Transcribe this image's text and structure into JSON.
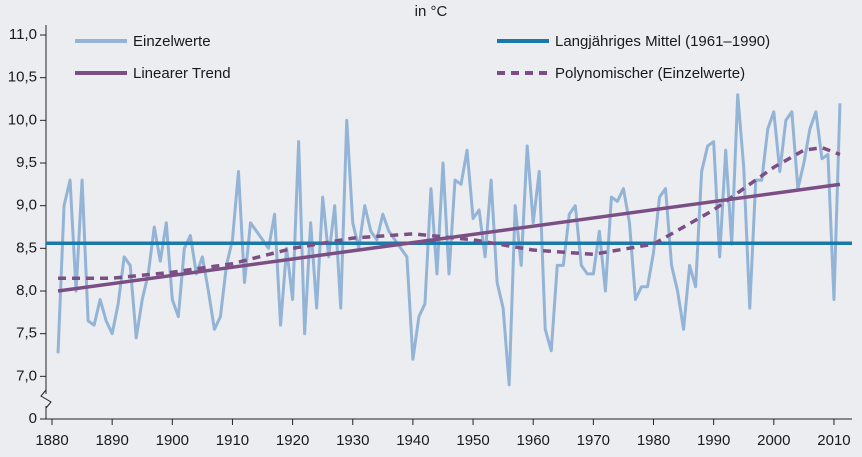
{
  "chart_data": {
    "type": "line",
    "title": "in °C",
    "series": [
      {
        "name": "Einzelwerte",
        "color": "#93b4d6",
        "style": "solid",
        "x": [
          1881,
          1882,
          1883,
          1884,
          1885,
          1886,
          1887,
          1888,
          1889,
          1890,
          1891,
          1892,
          1893,
          1894,
          1895,
          1896,
          1897,
          1898,
          1899,
          1900,
          1901,
          1902,
          1903,
          1904,
          1905,
          1906,
          1907,
          1908,
          1909,
          1910,
          1911,
          1912,
          1913,
          1914,
          1915,
          1916,
          1917,
          1918,
          1919,
          1920,
          1921,
          1922,
          1923,
          1924,
          1925,
          1926,
          1927,
          1928,
          1929,
          1930,
          1931,
          1932,
          1933,
          1934,
          1935,
          1936,
          1937,
          1938,
          1939,
          1940,
          1941,
          1942,
          1943,
          1944,
          1945,
          1946,
          1947,
          1948,
          1949,
          1950,
          1951,
          1952,
          1953,
          1954,
          1955,
          1956,
          1957,
          1958,
          1959,
          1960,
          1961,
          1962,
          1963,
          1964,
          1965,
          1966,
          1967,
          1968,
          1969,
          1970,
          1971,
          1972,
          1973,
          1974,
          1975,
          1976,
          1977,
          1978,
          1979,
          1980,
          1981,
          1982,
          1983,
          1984,
          1985,
          1986,
          1987,
          1988,
          1989,
          1990,
          1991,
          1992,
          1993,
          1994,
          1995,
          1996,
          1997,
          1998,
          1999,
          2000,
          2001,
          2002,
          2003,
          2004,
          2005,
          2006,
          2007,
          2008,
          2009,
          2010,
          2011
        ],
        "values": [
          7.27,
          9.0,
          9.3,
          8.0,
          9.3,
          7.65,
          7.6,
          7.9,
          7.65,
          7.5,
          7.85,
          8.4,
          8.3,
          7.45,
          7.9,
          8.2,
          8.75,
          8.35,
          8.8,
          7.9,
          7.7,
          8.5,
          8.65,
          8.2,
          8.4,
          8.0,
          7.55,
          7.7,
          8.3,
          8.6,
          9.4,
          8.1,
          8.8,
          8.7,
          8.6,
          8.5,
          8.9,
          7.6,
          8.5,
          7.9,
          9.75,
          7.5,
          8.8,
          7.8,
          9.1,
          8.4,
          9.0,
          7.8,
          10.0,
          8.8,
          8.5,
          9.0,
          8.7,
          8.6,
          8.9,
          8.7,
          8.6,
          8.5,
          8.4,
          7.2,
          7.7,
          7.85,
          9.2,
          8.2,
          9.5,
          8.2,
          9.3,
          9.25,
          9.65,
          8.85,
          8.95,
          8.4,
          9.3,
          8.1,
          7.8,
          6.9,
          9.0,
          8.3,
          9.7,
          8.8,
          9.4,
          7.55,
          7.3,
          8.3,
          8.3,
          8.9,
          9.0,
          8.3,
          8.2,
          8.2,
          8.7,
          8.0,
          9.1,
          9.05,
          9.2,
          8.8,
          7.9,
          8.05,
          8.05,
          8.45,
          9.1,
          9.2,
          8.3,
          8.0,
          7.55,
          8.3,
          8.05,
          9.4,
          9.7,
          9.75,
          8.4,
          9.65,
          8.55,
          10.3,
          9.45,
          7.8,
          9.3,
          9.3,
          9.9,
          10.1,
          9.4,
          10.0,
          10.1,
          9.2,
          9.5,
          9.9,
          10.1,
          9.55,
          9.6,
          7.9,
          10.2
        ]
      },
      {
        "name": "Langjähriges Mittel (1961–1990)",
        "color": "#1b79aa",
        "style": "solid",
        "x": [
          1879,
          2013
        ],
        "values": [
          8.56,
          8.56
        ]
      },
      {
        "name": "Linearer Trend",
        "color": "#7b4f85",
        "style": "solid",
        "x": [
          1881,
          2011
        ],
        "values": [
          8.0,
          9.25
        ]
      },
      {
        "name": "Polynomischer (Einzelwerte)",
        "color": "#7b4f85",
        "style": "dashed",
        "x": [
          1881,
          1890,
          1900,
          1910,
          1920,
          1930,
          1940,
          1950,
          1960,
          1970,
          1980,
          1990,
          2000,
          2005,
          2008,
          2011
        ],
        "values": [
          8.15,
          8.15,
          8.22,
          8.32,
          8.5,
          8.62,
          8.67,
          8.6,
          8.48,
          8.43,
          8.55,
          8.95,
          9.45,
          9.65,
          9.68,
          9.6
        ]
      }
    ],
    "xlim": [
      1879,
      2013
    ],
    "xticks": [
      1880,
      1890,
      1900,
      1910,
      1920,
      1930,
      1940,
      1950,
      1960,
      1970,
      1980,
      1990,
      2000,
      2010
    ],
    "ylim": [
      0,
      11
    ],
    "axis_break": [
      0,
      6.5
    ],
    "yticks": [
      0,
      {
        "value": 7.0,
        "label": "7,0"
      },
      {
        "value": 7.5,
        "label": "7,5"
      },
      {
        "value": 8.0,
        "label": "8,0"
      },
      {
        "value": 8.5,
        "label": "8,5"
      },
      {
        "value": 9.0,
        "label": "9,0"
      },
      {
        "value": 9.5,
        "label": "9,5"
      },
      {
        "value": 10.0,
        "label": "10,0"
      },
      {
        "value": 10.5,
        "label": "10,5"
      },
      {
        "value": 11.0,
        "label": "11,0"
      }
    ],
    "grid": false,
    "legend": "top"
  }
}
